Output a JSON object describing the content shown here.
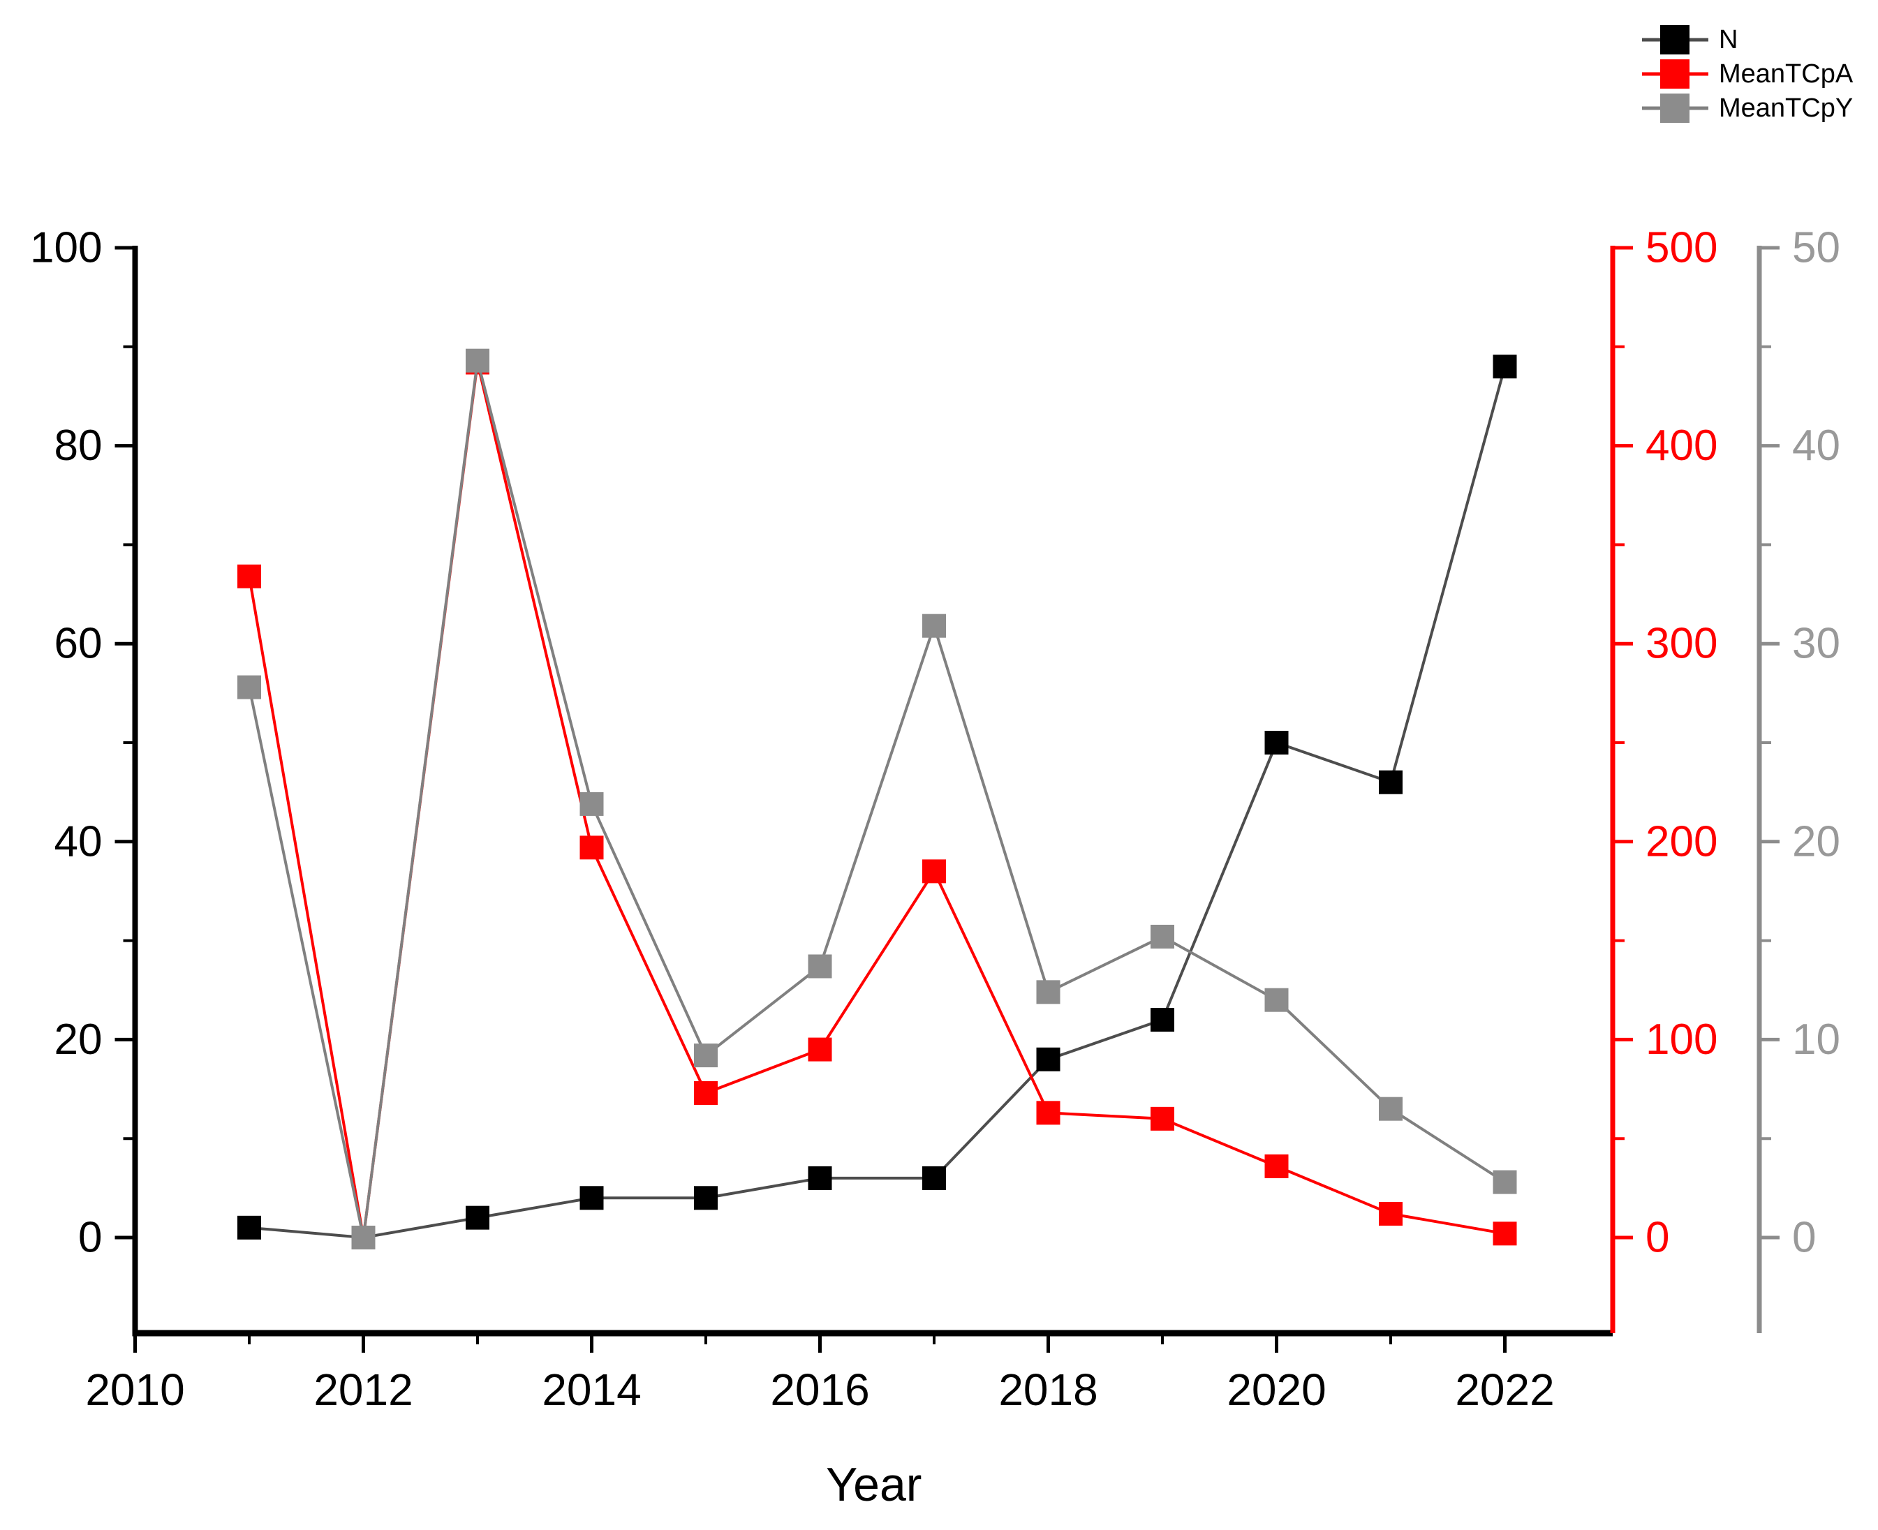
{
  "figure": {
    "background": "#ffffff"
  },
  "legend": {
    "position": "top-right",
    "entries": [
      {
        "label": "N",
        "marker_color": "#000000",
        "line_color": "#4d4d4d"
      },
      {
        "label": "MeanTCpA",
        "marker_color": "#ff0000",
        "line_color": "#ff0000"
      },
      {
        "label": "MeanTCpY",
        "marker_color": "#8c8c8c",
        "line_color": "#808080"
      }
    ]
  },
  "chart_data": {
    "type": "line",
    "title": "",
    "xlabel": "Year",
    "grid": false,
    "legend_position": "top-right",
    "x": [
      2011,
      2012,
      2013,
      2014,
      2015,
      2016,
      2017,
      2018,
      2019,
      2020,
      2021,
      2022
    ],
    "series": [
      {
        "name": "N",
        "axis": "left",
        "marker": "square",
        "marker_color": "#000000",
        "line_color": "#4d4d4d",
        "values": [
          1,
          0,
          2,
          4,
          4,
          6,
          6,
          18,
          22,
          50,
          46,
          88
        ]
      },
      {
        "name": "MeanTCpA",
        "axis": "right1",
        "marker": "square",
        "marker_color": "#ff0000",
        "line_color": "#ff0000",
        "values": [
          334,
          0,
          442,
          197,
          73,
          95,
          185,
          63,
          60,
          36,
          12,
          2
        ]
      },
      {
        "name": "MeanTCpY",
        "axis": "right2",
        "marker": "square",
        "marker_color": "#8c8c8c",
        "line_color": "#808080",
        "values": [
          27.8,
          0,
          44.3,
          21.9,
          9.2,
          13.7,
          30.9,
          12.4,
          15.2,
          12,
          6.5,
          2.8
        ]
      }
    ],
    "axes": {
      "x": {
        "label": "Year",
        "min": 2010,
        "max": 2023,
        "major_ticks": [
          2010,
          2012,
          2014,
          2016,
          2018,
          2020,
          2022
        ],
        "minor_ticks": [
          2011,
          2013,
          2015,
          2017,
          2019,
          2021
        ],
        "color": "#000000"
      },
      "left": {
        "min": 0,
        "max": 100,
        "major_ticks": [
          0,
          20,
          40,
          60,
          80,
          100
        ],
        "minor_ticks": [
          10,
          30,
          50,
          70,
          90
        ],
        "color": "#000000",
        "label_color": "#000000"
      },
      "right1": {
        "min": 0,
        "max": 500,
        "major_ticks": [
          0,
          100,
          200,
          300,
          400,
          500
        ],
        "minor_ticks": [
          50,
          150,
          250,
          350,
          450
        ],
        "color": "#ff0000",
        "label_color": "#ff0000"
      },
      "right2": {
        "min": 0,
        "max": 50,
        "major_ticks": [
          0,
          10,
          20,
          30,
          40,
          50
        ],
        "minor_ticks": [
          5,
          15,
          25,
          35,
          45
        ],
        "color": "#8c8c8c",
        "label_color": "#999999"
      }
    }
  }
}
